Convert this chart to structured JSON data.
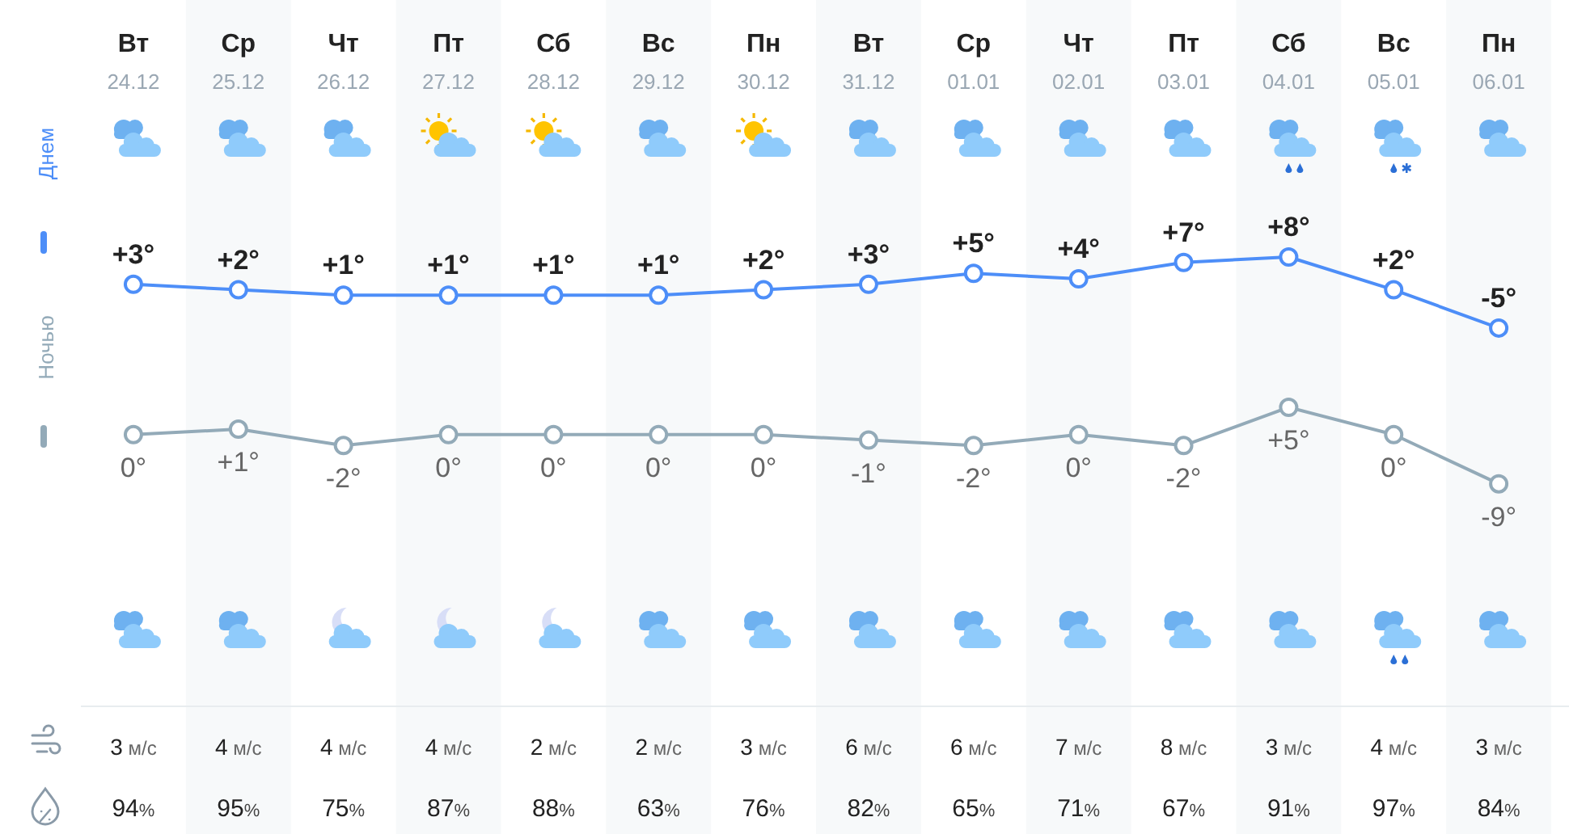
{
  "chart_data": [
    {
      "type": "line",
      "categories": [
        "Вт\n24.12",
        "Ср\n25.12",
        "Чт\n26.12",
        "Пт\n27.12",
        "Сб\n28.12",
        "Вс\n29.12",
        "Пн\n30.12",
        "Вт\n31.12",
        "Ср\n01.01",
        "Чт\n02.01",
        "Пт\n03.01",
        "Сб\n04.01",
        "Вс\n05.01",
        "Пн\n06.01"
      ],
      "series": [
        {
          "name": "Днем",
          "color": "#4d8ef8",
          "values": [
            3,
            2,
            1,
            1,
            1,
            1,
            2,
            3,
            5,
            4,
            7,
            8,
            2,
            -5
          ],
          "value_labels": [
            "+3°",
            "+2°",
            "+1°",
            "+1°",
            "+1°",
            "+1°",
            "+2°",
            "+3°",
            "+5°",
            "+4°",
            "+7°",
            "+8°",
            "+2°",
            "-5°"
          ]
        }
      ],
      "marker": "circle",
      "legend": "left",
      "annotations": [
        "3 м/с",
        "4 м/с",
        "4 м/с",
        "4 м/с",
        "2 м/с",
        "2 м/с",
        "3 м/с",
        "6 м/с",
        "6 м/с",
        "7 м/с",
        "8 м/с",
        "3 м/с",
        "4 м/с",
        "3 м/с",
        "94%",
        "95%",
        "75%",
        "87%",
        "88%",
        "63%",
        "76%",
        "82%",
        "65%",
        "71%",
        "67%",
        "91%",
        "97%",
        "84%"
      ]
    },
    {
      "type": "line",
      "categories": [
        null,
        null,
        null,
        null,
        null,
        null,
        null,
        null,
        null,
        null,
        null,
        null,
        null,
        null
      ],
      "series": [
        {
          "name": "Ночью",
          "color": "#93aab8",
          "values": [
            0,
            1,
            -2,
            0,
            0,
            0,
            0,
            -1,
            -2,
            0,
            -2,
            5,
            0,
            -9
          ],
          "value_labels": [
            "0°",
            "+1°",
            "-2°",
            "0°",
            "0°",
            "0°",
            "0°",
            "-1°",
            "-2°",
            "0°",
            "-2°",
            "+5°",
            "0°",
            "-9°"
          ]
        }
      ],
      "marker": "circle",
      "legend": "left"
    }
  ]
}
